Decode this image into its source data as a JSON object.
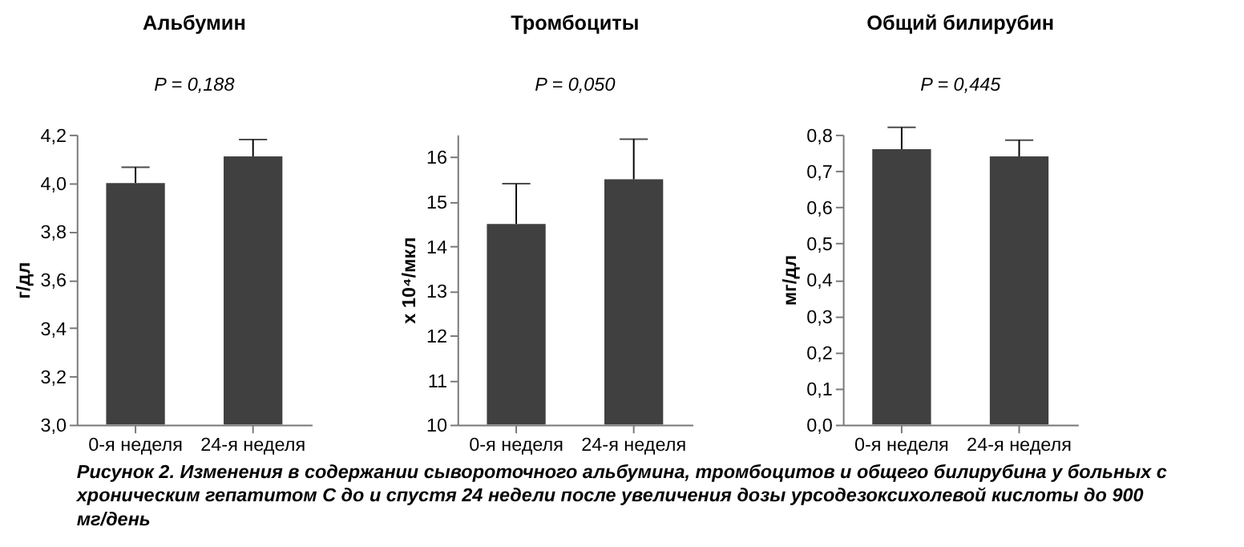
{
  "chart_data": [
    {
      "type": "bar",
      "title": "Альбумин",
      "ylabel": "г/дл",
      "categories": [
        "0-я неделя",
        "24-я неделя"
      ],
      "values": [
        4.0,
        4.11
      ],
      "errors": [
        [
          4.0,
          4.065
        ],
        [
          4.11,
          4.18
        ]
      ],
      "color": "#404040",
      "ylim": [
        3.0,
        4.2
      ],
      "yticks": [
        {
          "value": 3.0,
          "label": "3,0"
        },
        {
          "value": 3.2,
          "label": "3,2"
        },
        {
          "value": 3.4,
          "label": "3,4"
        },
        {
          "value": 3.6,
          "label": "3,6"
        },
        {
          "value": 3.8,
          "label": "3,8"
        },
        {
          "value": 4.0,
          "label": "4,0"
        },
        {
          "value": 4.2,
          "label": "4,2"
        }
      ],
      "grid": false,
      "annotations": [
        "P = 0,188"
      ]
    },
    {
      "type": "bar",
      "title": "Тромбоциты",
      "ylabel": "x 10⁴/мкл",
      "categories": [
        "0-я неделя",
        "24-я неделя"
      ],
      "values": [
        14.5,
        15.5
      ],
      "errors": [
        [
          14.5,
          15.4
        ],
        [
          15.5,
          16.4
        ]
      ],
      "color": "#404040",
      "ylim": [
        10,
        16.5
      ],
      "yticks": [
        10,
        11,
        12,
        13,
        14,
        15,
        16
      ],
      "grid": false,
      "annotations": [
        "P = 0,050"
      ]
    },
    {
      "type": "bar",
      "title": "Общий билирубин",
      "ylabel": "мг/дл",
      "categories": [
        "0-я неделя",
        "24-я неделя"
      ],
      "values": [
        0.76,
        0.74
      ],
      "errors": [
        [
          0.76,
          0.82
        ],
        [
          0.74,
          0.785
        ]
      ],
      "color": "#404040",
      "ylim": [
        0.0,
        0.8
      ],
      "yticks": [
        {
          "value": 0.0,
          "label": "0,0"
        },
        {
          "value": 0.1,
          "label": "0,1"
        },
        {
          "value": 0.2,
          "label": "0,2"
        },
        {
          "value": 0.3,
          "label": "0,3"
        },
        {
          "value": 0.4,
          "label": "0,4"
        },
        {
          "value": 0.5,
          "label": "0,5"
        },
        {
          "value": 0.6,
          "label": "0,6"
        },
        {
          "value": 0.7,
          "label": "0,7"
        },
        {
          "value": 0.8,
          "label": "0,8"
        }
      ],
      "grid": false,
      "annotations": [
        "P = 0,445"
      ]
    },
    {
      "type": "other",
      "annotations": [
        "Рисунок 2. Изменения в содержании сывороточного альбумина, тромбоцитов и общего билирубина у больных с хроническим гепатитом С до и спустя 24 недели после увеличения дозы урсодезоксихолевой кислоты до 900 мг/день"
      ]
    }
  ]
}
